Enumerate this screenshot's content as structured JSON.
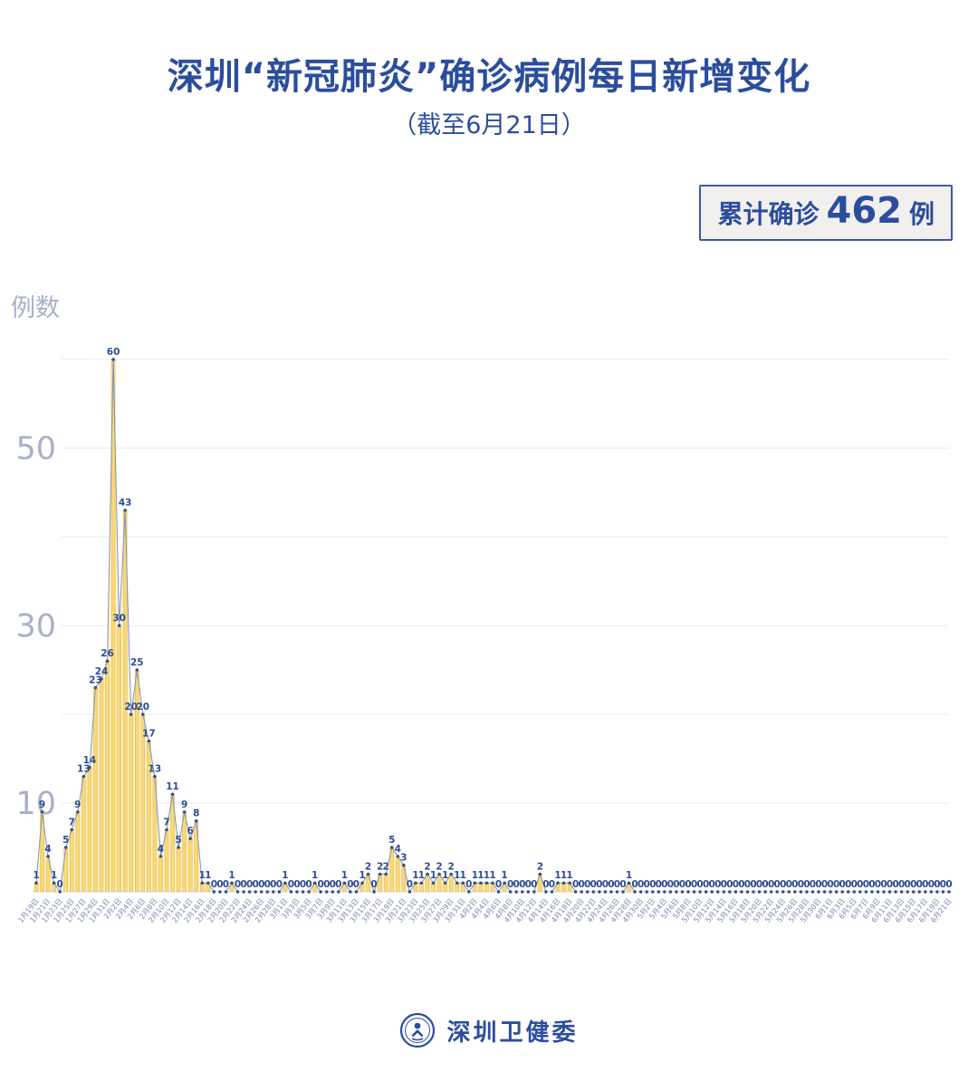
{
  "header": {
    "title": "深圳“新冠肺炎”确诊病例每日新增变化",
    "subtitle": "（截至6月21日）"
  },
  "badge": {
    "prefix": "累计确诊",
    "value": "462",
    "suffix": "例"
  },
  "footer": {
    "org": "深圳卫健委",
    "logo_icon": "person-in-circle-health-logo"
  },
  "chart_data": {
    "type": "bar",
    "title": "深圳“新冠肺炎”确诊病例每日新增变化",
    "subtitle": "（截至6月21日）",
    "ylabel": "例数",
    "xlabel": "",
    "ylim": [
      0,
      62
    ],
    "grid": true,
    "gridlines": [
      10,
      20,
      30,
      40,
      50,
      60
    ],
    "yticks_labeled": [
      10,
      30,
      50
    ],
    "x_label_every": 2,
    "point_labels": "all",
    "cumulative_total": 462,
    "colors": {
      "bar_fill": "#f8d977",
      "bar_edge": "#e9b94b",
      "area_fill": "#fdf3d4",
      "line": "#7b93c6",
      "dot": "#2e4c94",
      "label": "#2e4c94",
      "grid": "#e8e8ee",
      "axis": "#c9cfdf",
      "ytick": "#a9b0ca",
      "xtick": "#7d88ae",
      "accent_blue": "#2b4d9e"
    },
    "categories": [
      "1月19日",
      "1月20日",
      "1月21日",
      "1月22日",
      "1月23日",
      "1月24日",
      "1月25日",
      "1月26日",
      "1月27日",
      "1月28日",
      "1月29日",
      "1月30日",
      "1月31日",
      "2月1日",
      "2月2日",
      "2月3日",
      "2月4日",
      "2月5日",
      "2月6日",
      "2月7日",
      "2月8日",
      "2月9日",
      "2月10日",
      "2月11日",
      "2月12日",
      "2月13日",
      "2月14日",
      "2月15日",
      "2月16日",
      "2月17日",
      "2月18日",
      "2月19日",
      "2月20日",
      "2月21日",
      "2月22日",
      "2月23日",
      "2月24日",
      "2月25日",
      "2月26日",
      "2月27日",
      "2月28日",
      "2月29日",
      "3月1日",
      "3月2日",
      "3月3日",
      "3月4日",
      "3月5日",
      "3月6日",
      "3月7日",
      "3月8日",
      "3月9日",
      "3月10日",
      "3月11日",
      "3月12日",
      "3月13日",
      "3月14日",
      "3月15日",
      "3月16日",
      "3月17日",
      "3月18日",
      "3月19日",
      "3月20日",
      "3月21日",
      "3月22日",
      "3月23日",
      "3月24日",
      "3月25日",
      "3月26日",
      "3月27日",
      "3月28日",
      "3月29日",
      "3月30日",
      "3月31日",
      "4月1日",
      "4月2日",
      "4月3日",
      "4月4日",
      "4月5日",
      "4月6日",
      "4月7日",
      "4月8日",
      "4月9日",
      "4月10日",
      "4月11日",
      "4月12日",
      "4月13日",
      "4月14日",
      "4月15日",
      "4月16日",
      "4月17日",
      "4月18日",
      "4月19日",
      "4月20日",
      "4月21日",
      "4月22日",
      "4月23日",
      "4月24日",
      "4月25日",
      "4月26日",
      "4月27日",
      "4月28日",
      "4月29日",
      "4月30日",
      "5月1日",
      "5月2日",
      "5月3日",
      "5月4日",
      "5月5日",
      "5月6日",
      "5月7日",
      "5月8日",
      "5月9日",
      "5月10日",
      "5月11日",
      "5月12日",
      "5月13日",
      "5月14日",
      "5月15日",
      "5月16日",
      "5月17日",
      "5月18日",
      "5月19日",
      "5月20日",
      "5月21日",
      "5月22日",
      "5月23日",
      "5月24日",
      "5月25日",
      "5月26日",
      "5月27日",
      "5月28日",
      "5月29日",
      "5月30日",
      "5月31日",
      "6月1日",
      "6月2日",
      "6月3日",
      "6月4日",
      "6月5日",
      "6月6日",
      "6月7日",
      "6月8日",
      "6月9日",
      "6月10日",
      "6月11日",
      "6月12日",
      "6月13日",
      "6月14日",
      "6月15日",
      "6月16日",
      "6月17日",
      "6月18日",
      "6月19日",
      "6月20日",
      "6月21日"
    ],
    "values": [
      1,
      9,
      4,
      1,
      0,
      5,
      7,
      9,
      13,
      14,
      23,
      24,
      26,
      60,
      30,
      43,
      20,
      25,
      20,
      17,
      13,
      4,
      7,
      11,
      5,
      9,
      6,
      8,
      1,
      1,
      0,
      0,
      0,
      1,
      0,
      0,
      0,
      0,
      0,
      0,
      0,
      0,
      1,
      0,
      0,
      0,
      0,
      1,
      0,
      0,
      0,
      0,
      1,
      0,
      0,
      1,
      2,
      0,
      2,
      2,
      5,
      4,
      3,
      0,
      1,
      1,
      2,
      1,
      2,
      1,
      2,
      1,
      1,
      0,
      1,
      1,
      1,
      1,
      0,
      1,
      0,
      0,
      0,
      0,
      0,
      2,
      0,
      0,
      1,
      1,
      1,
      0,
      0,
      0,
      0,
      0,
      0,
      0,
      0,
      0,
      1,
      0,
      0,
      0,
      0,
      0,
      0,
      0,
      0,
      0,
      0,
      0,
      0,
      0,
      0,
      0,
      0,
      0,
      0,
      0,
      0,
      0,
      0,
      0,
      0,
      0,
      0,
      0,
      0,
      0,
      0,
      0,
      0,
      0,
      0,
      0,
      0,
      0,
      0,
      0,
      0,
      0,
      0,
      0,
      0,
      0,
      0,
      0,
      0,
      0,
      0,
      0,
      0,
      0,
      0
    ]
  }
}
